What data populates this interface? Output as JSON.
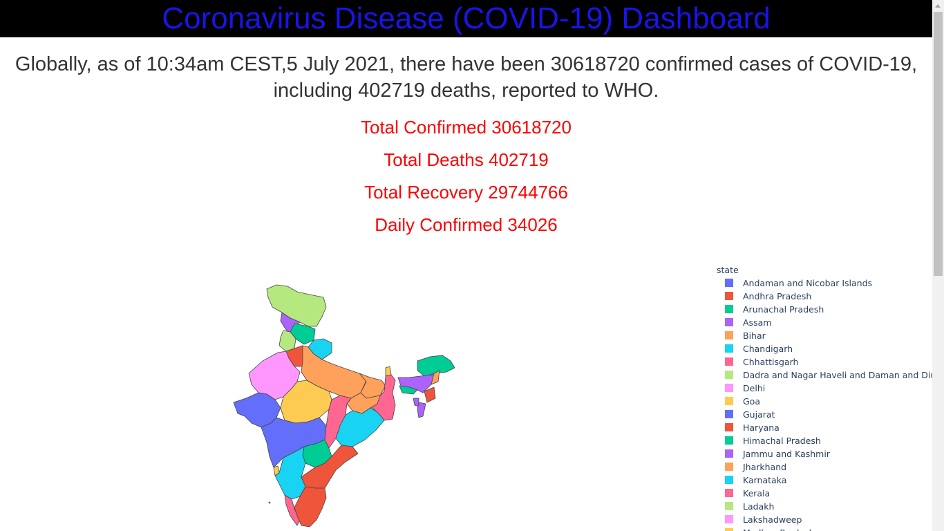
{
  "header": {
    "title": "Coronavirus Disease (COVID-19) Dashboard"
  },
  "summary": "Globally, as of 10:34am CEST,5 July 2021, there have been 30618720 confirmed cases of COVID-19, including 402719 deaths, reported to WHO.",
  "stats": [
    {
      "label": "Total Confirmed 30618720"
    },
    {
      "label": "Total Deaths 402719"
    },
    {
      "label": "Total Recovery 29744766"
    },
    {
      "label": "Daily Confirmed 34026"
    }
  ],
  "colors": {
    "header_bg": "#000000",
    "title": "#1a14e6",
    "stat": "#ff0000",
    "summary": "#333333"
  },
  "legend": {
    "title": "state",
    "items": [
      {
        "label": "Andaman and Nicobar Islands",
        "color": "#636efa"
      },
      {
        "label": "Andhra Pradesh",
        "color": "#ef553b"
      },
      {
        "label": "Arunachal Pradesh",
        "color": "#00cc96"
      },
      {
        "label": "Assam",
        "color": "#ab63fa"
      },
      {
        "label": "Bihar",
        "color": "#ffa15a"
      },
      {
        "label": "Chandigarh",
        "color": "#19d3f3"
      },
      {
        "label": "Chhattisgarh",
        "color": "#ff6692"
      },
      {
        "label": "Dadra and Nagar Haveli and Daman and Diu",
        "color": "#b6e880"
      },
      {
        "label": "Delhi",
        "color": "#ff97ff"
      },
      {
        "label": "Goa",
        "color": "#fecb52"
      },
      {
        "label": "Gujarat",
        "color": "#636efa"
      },
      {
        "label": "Haryana",
        "color": "#ef553b"
      },
      {
        "label": "Himachal Pradesh",
        "color": "#00cc96"
      },
      {
        "label": "Jammu and Kashmir",
        "color": "#ab63fa"
      },
      {
        "label": "Jharkhand",
        "color": "#ffa15a"
      },
      {
        "label": "Karnataka",
        "color": "#19d3f3"
      },
      {
        "label": "Kerala",
        "color": "#ff6692"
      },
      {
        "label": "Ladakh",
        "color": "#b6e880"
      },
      {
        "label": "Lakshadweep",
        "color": "#ff97ff"
      },
      {
        "label": "Madhya Pradesh",
        "color": "#fecb52"
      }
    ]
  }
}
